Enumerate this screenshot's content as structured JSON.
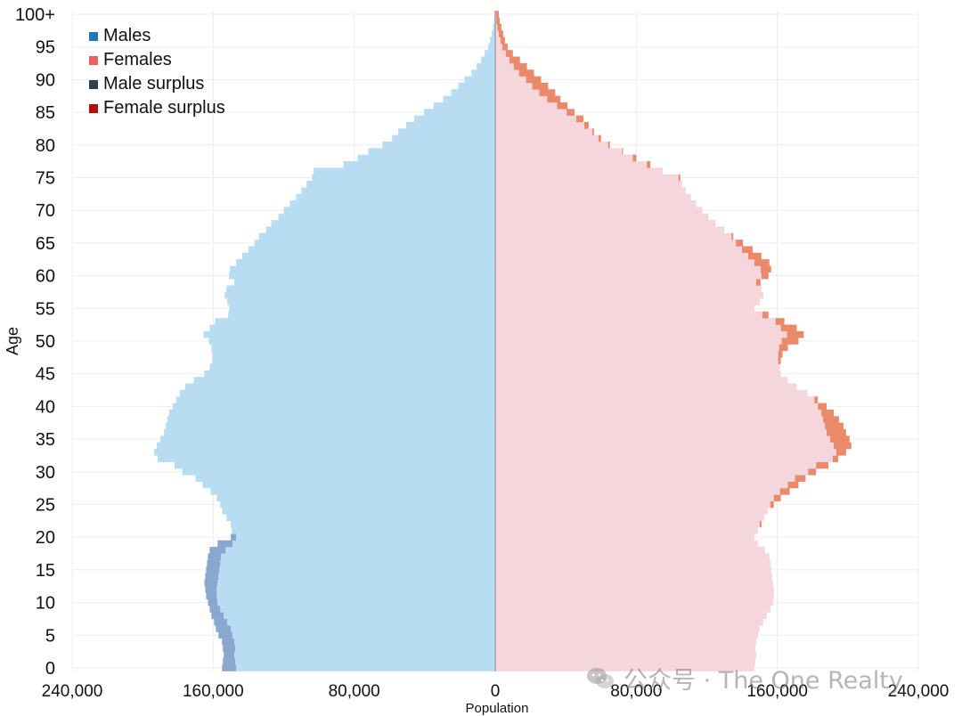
{
  "chart_data": {
    "type": "bar",
    "orientation": "horizontal-population-pyramid",
    "title": "",
    "xlabel": "Population",
    "ylabel": "Age",
    "xlim": [
      -240000,
      240000
    ],
    "x_ticks": [
      -240000,
      -160000,
      -80000,
      0,
      80000,
      160000,
      240000
    ],
    "x_tick_labels": [
      "240,000",
      "160,000",
      "80,000",
      "0",
      "80,000",
      "160,000",
      "240,000"
    ],
    "y_ticks": [
      0,
      5,
      10,
      15,
      20,
      25,
      30,
      35,
      40,
      45,
      50,
      55,
      60,
      65,
      70,
      75,
      80,
      85,
      90,
      95,
      100
    ],
    "y_tick_labels": [
      "0",
      "5",
      "10",
      "15",
      "20",
      "25",
      "30",
      "35",
      "40",
      "45",
      "50",
      "55",
      "60",
      "65",
      "70",
      "75",
      "80",
      "85",
      "90",
      "95",
      "100+"
    ],
    "legend_position": "top-left",
    "grid": true,
    "series": [
      {
        "name": "Males",
        "color": "#1f77b4",
        "values": [
          155000,
          154500,
          154000,
          154500,
          155000,
          157000,
          158500,
          159500,
          161000,
          162000,
          163000,
          164000,
          164500,
          165000,
          164500,
          164000,
          163500,
          163000,
          162000,
          157500,
          150000,
          149500,
          150000,
          152500,
          155000,
          156000,
          158000,
          161500,
          166000,
          170000,
          177500,
          182000,
          191500,
          193500,
          192000,
          190000,
          188000,
          187000,
          186000,
          185000,
          183000,
          181000,
          179000,
          176000,
          171000,
          165000,
          162000,
          160500,
          160500,
          161000,
          162500,
          165500,
          162000,
          159000,
          151500,
          151000,
          152000,
          153500,
          152500,
          148000,
          151000,
          150500,
          147000,
          143500,
          140000,
          136500,
          134000,
          130000,
          127000,
          123000,
          120000,
          116500,
          113000,
          110000,
          107000,
          104000,
          103000,
          86000,
          78000,
          72000,
          64000,
          58500,
          55000,
          50500,
          46000,
          40500,
          35000,
          29500,
          25000,
          21000,
          17500,
          13500,
          10500,
          8000,
          6000,
          4000,
          3000,
          2000,
          1200,
          600,
          500
        ]
      },
      {
        "name": "Females",
        "color": "#e8635a",
        "values": [
          147000,
          147500,
          148000,
          147500,
          148000,
          149000,
          150000,
          152000,
          154000,
          156000,
          157500,
          158000,
          158000,
          157500,
          157000,
          156500,
          156000,
          155500,
          153000,
          149000,
          147000,
          149000,
          151000,
          152500,
          154500,
          158000,
          162000,
          167000,
          172000,
          176000,
          182000,
          189000,
          194500,
          199000,
          202000,
          201000,
          199000,
          197500,
          195000,
          192000,
          188000,
          183000,
          177000,
          171000,
          166000,
          162000,
          161500,
          162000,
          163000,
          166000,
          172000,
          175000,
          171000,
          164000,
          155000,
          147000,
          150000,
          152000,
          151000,
          150500,
          155000,
          156500,
          155500,
          151000,
          146000,
          140500,
          135000,
          130000,
          125000,
          121000,
          117500,
          114000,
          111000,
          108000,
          106000,
          105000,
          95000,
          88000,
          80000,
          72500,
          65000,
          60000,
          56000,
          53000,
          50000,
          45000,
          41000,
          37000,
          34000,
          30000,
          26000,
          22000,
          18000,
          14000,
          10000,
          7000,
          5500,
          4500,
          3500,
          2500,
          2000
        ]
      },
      {
        "name": "Male surplus",
        "color": "#2c3e50",
        "values": [
          8000,
          7000,
          6000,
          7000,
          7000,
          8000,
          8500,
          7500,
          7000,
          6000,
          5500,
          6000,
          6500,
          7500,
          7500,
          7500,
          7500,
          7500,
          9000,
          8500,
          3000,
          0.5,
          0,
          0,
          0.5,
          0,
          0,
          0,
          0,
          0,
          0,
          0,
          0,
          0,
          0,
          0,
          0,
          0,
          0,
          0,
          0,
          0,
          0,
          0,
          0,
          0,
          0,
          0,
          0,
          0,
          0,
          0,
          0,
          0,
          0,
          0,
          0,
          0,
          0,
          0,
          0,
          0,
          0,
          0,
          0,
          0,
          0,
          0,
          0,
          0,
          0,
          0,
          0,
          0,
          0,
          0,
          0,
          0,
          0,
          0,
          0,
          0,
          0,
          0,
          0,
          0,
          0,
          0,
          0,
          0,
          0,
          0,
          0,
          0,
          0,
          0,
          0,
          0,
          0,
          0,
          0
        ]
      },
      {
        "name": "Female surplus",
        "color": "#b01010",
        "values": []
      }
    ]
  },
  "legend": [
    {
      "label": "Males",
      "color": "#1f77b4"
    },
    {
      "label": "Females",
      "color": "#e8635a"
    },
    {
      "label": "Male surplus",
      "color": "#2c3e50"
    },
    {
      "label": "Female surplus",
      "color": "#b01010"
    }
  ],
  "colors": {
    "male_fill": "#b8dcf2",
    "female_fill": "#f4d6dc",
    "male_surplus_fill": "#8aa7cf",
    "female_surplus_fill": "#ea8a6a",
    "axis": "#888888",
    "grid": "#eeeeee"
  },
  "watermark": {
    "text": "公众号 · The One Realty",
    "icon": "wechat-icon"
  }
}
